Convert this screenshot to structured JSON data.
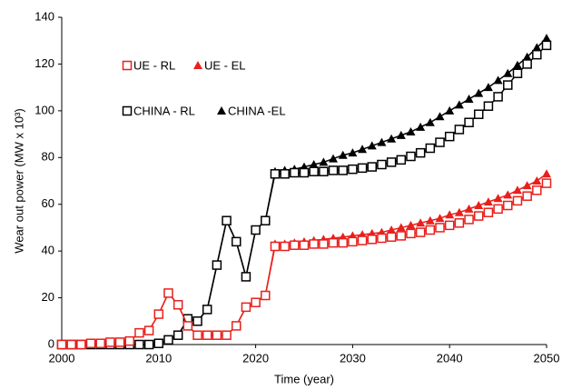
{
  "chart_data": {
    "type": "line",
    "xlabel": "Time (year)",
    "ylabel": "Wear out power (MW x 10³)",
    "x": [
      2000,
      2001,
      2002,
      2003,
      2004,
      2005,
      2006,
      2007,
      2008,
      2009,
      2010,
      2011,
      2012,
      2013,
      2014,
      2015,
      2016,
      2017,
      2018,
      2019,
      2020,
      2021,
      2022,
      2023,
      2024,
      2025,
      2026,
      2027,
      2028,
      2029,
      2030,
      2031,
      2032,
      2033,
      2034,
      2035,
      2036,
      2037,
      2038,
      2039,
      2040,
      2041,
      2042,
      2043,
      2044,
      2045,
      2046,
      2047,
      2048,
      2049,
      2050
    ],
    "series": [
      {
        "name": "UE - RL",
        "color": "#e8201c",
        "marker": "square-open",
        "values": [
          0,
          0,
          0,
          0.5,
          0.5,
          1,
          1,
          1.5,
          5,
          6,
          13,
          22,
          17,
          8,
          4,
          4,
          4,
          4,
          8,
          16,
          18,
          21,
          42,
          42,
          42.5,
          42.5,
          43,
          43,
          43.5,
          43.5,
          44,
          44.5,
          45,
          45.5,
          46,
          46.5,
          47.5,
          48,
          49,
          50,
          51,
          52,
          53.5,
          55,
          56.5,
          58,
          59.5,
          61.5,
          63.5,
          66,
          69
        ]
      },
      {
        "name": "UE - EL",
        "color": "#e8201c",
        "marker": "triangle",
        "values": [
          0,
          0,
          0,
          0.5,
          0.5,
          1,
          1,
          1.5,
          5,
          6,
          13,
          22,
          17,
          8,
          4,
          4,
          4,
          4,
          8,
          16,
          18,
          21,
          43,
          43,
          43.5,
          44,
          44.5,
          45,
          45.5,
          46,
          46.5,
          47,
          47.5,
          48,
          49,
          50,
          51,
          52,
          53,
          54,
          55.5,
          56.5,
          58,
          59.5,
          61,
          62.5,
          64,
          66,
          68,
          70,
          73
        ]
      },
      {
        "name": "CHINA - RL",
        "color": "#000000",
        "marker": "square-open",
        "values": [
          0,
          0,
          0,
          0,
          0,
          0,
          0,
          0,
          0,
          0,
          0.5,
          2,
          4,
          11,
          10,
          15,
          34,
          53,
          44,
          29,
          49,
          53,
          73,
          73,
          73.5,
          73.5,
          74,
          74,
          74.5,
          74.5,
          75,
          75.5,
          76,
          77,
          78,
          79,
          80.5,
          82,
          84,
          86.5,
          89,
          92,
          95,
          98.5,
          102,
          106,
          111,
          116,
          120,
          124,
          128
        ]
      },
      {
        "name": "CHINA -EL",
        "color": "#000000",
        "marker": "triangle",
        "values": [
          0,
          0,
          0,
          0,
          0,
          0,
          0,
          0,
          0,
          0,
          0.5,
          2,
          4,
          11,
          10,
          15,
          34,
          53,
          44,
          29,
          49,
          53,
          74,
          74.5,
          75,
          76,
          77,
          78,
          79.5,
          81,
          82,
          83.5,
          85,
          86.5,
          88,
          89.5,
          91,
          93,
          95,
          97.5,
          100,
          102.5,
          105,
          107.5,
          110,
          113,
          116,
          119.5,
          123,
          127,
          131
        ]
      }
    ],
    "xlim": [
      2000,
      2050
    ],
    "xticks": [
      2000,
      2010,
      2020,
      2030,
      2040,
      2050
    ],
    "ylim": [
      0,
      140
    ],
    "yticks": [
      0,
      20,
      40,
      60,
      80,
      100,
      120,
      140
    ],
    "grid": false
  }
}
